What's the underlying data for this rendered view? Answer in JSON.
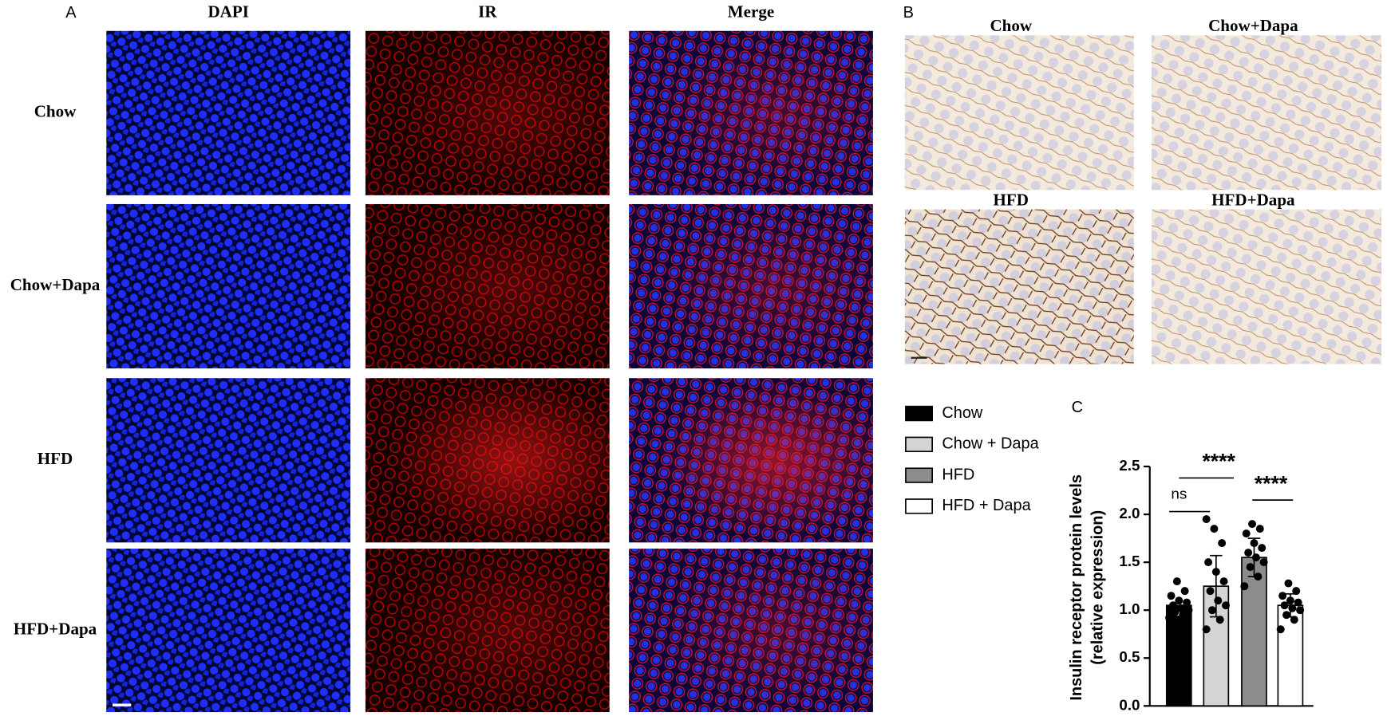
{
  "panel_a": {
    "label": "A",
    "columns": [
      "DAPI",
      "IR",
      "Merge"
    ],
    "rows": [
      "Chow",
      "Chow+Dapa",
      "HFD",
      "HFD+Dapa"
    ]
  },
  "panel_b": {
    "label": "B",
    "images": [
      "Chow",
      "Chow+Dapa",
      "HFD",
      "HFD+Dapa"
    ]
  },
  "chart_data": {
    "type": "bar",
    "label": "C",
    "y_label": [
      "Insulin receptor protein levels",
      "(relative expression)"
    ],
    "categories": [
      "Chow",
      "Chow + Dapa",
      "HFD",
      "HFD + Dapa"
    ],
    "colors": [
      "#000000",
      "#d4d4d4",
      "#8c8c8c",
      "#ffffff"
    ],
    "values": [
      1.05,
      1.25,
      1.55,
      1.05
    ],
    "errors": [
      0.1,
      0.32,
      0.2,
      0.12
    ],
    "points": [
      [
        0.92,
        0.95,
        0.98,
        1.0,
        1.02,
        1.05,
        1.08,
        1.1,
        1.15,
        1.2,
        1.3
      ],
      [
        0.8,
        0.9,
        1.0,
        1.05,
        1.1,
        1.2,
        1.3,
        1.4,
        1.5,
        1.7,
        1.85,
        1.95
      ],
      [
        1.25,
        1.35,
        1.45,
        1.5,
        1.55,
        1.6,
        1.65,
        1.7,
        1.8,
        1.85,
        1.9
      ],
      [
        0.8,
        0.9,
        0.95,
        1.0,
        1.02,
        1.05,
        1.08,
        1.1,
        1.15,
        1.2,
        1.28
      ]
    ],
    "ylim": [
      0,
      2.5
    ],
    "yticks": [
      {
        "value": 0,
        "label": "0.0"
      },
      0.5,
      {
        "value": 1,
        "label": "1.0"
      },
      1.5,
      {
        "value": 2,
        "label": "2.0"
      },
      2.5
    ],
    "annotations": [
      "ns",
      "****",
      "****"
    ]
  }
}
